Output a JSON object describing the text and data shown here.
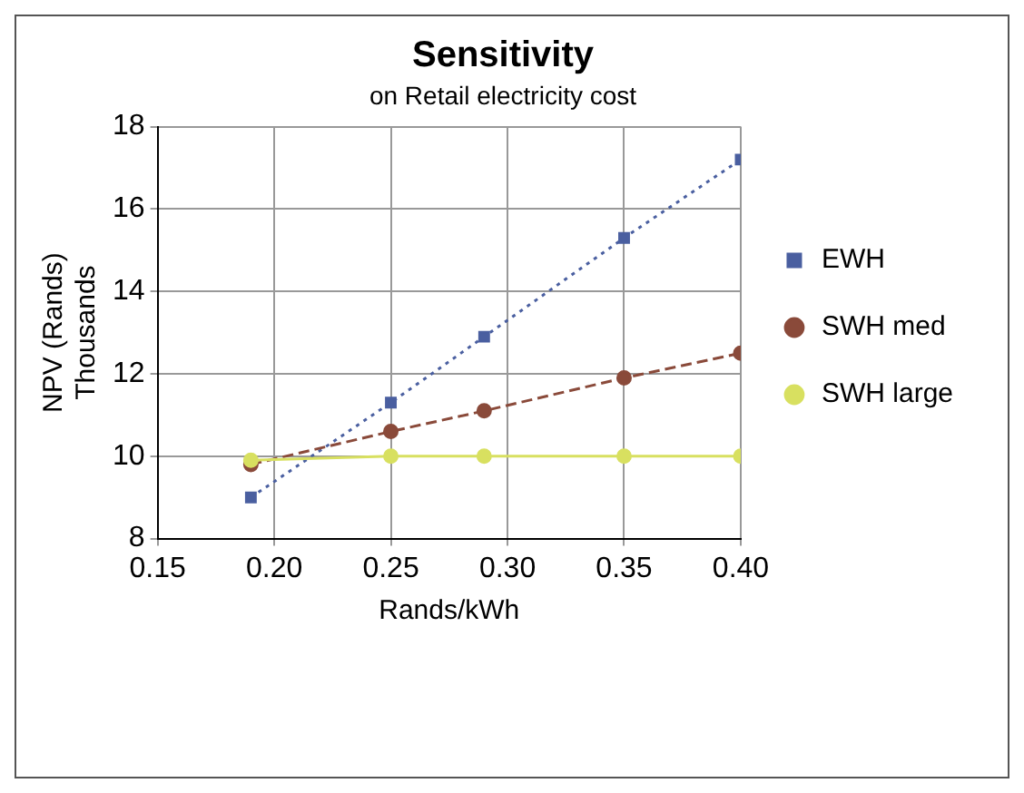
{
  "chart_data": {
    "type": "line",
    "title": "Sensitivity",
    "subtitle": "on Retail electricity cost",
    "xlabel": "Rands/kWh",
    "ylabel": "NPV (Rands)\nThousands",
    "x": [
      0.19,
      0.25,
      0.29,
      0.35,
      0.4
    ],
    "series": [
      {
        "name": "EWH",
        "color": "#4a5fa0",
        "values": [
          9.0,
          11.3,
          12.9,
          15.3,
          17.2
        ],
        "marker": "square",
        "line_style": "dotted"
      },
      {
        "name": "SWH med",
        "color": "#8a4a3a",
        "values": [
          9.8,
          10.6,
          11.1,
          11.9,
          12.5
        ],
        "marker": "circle",
        "line_style": "dashed"
      },
      {
        "name": "SWH large",
        "color": "#d8e060",
        "values": [
          9.9,
          10,
          10,
          10,
          10
        ],
        "marker": "circle",
        "line_style": "solid"
      }
    ],
    "xlim": [
      0.15,
      0.4
    ],
    "xticks": [
      {
        "value": 0.15,
        "label": "0.15"
      },
      {
        "value": 0.2,
        "label": "0.20"
      },
      {
        "value": 0.25,
        "label": "0.25"
      },
      {
        "value": 0.3,
        "label": "0.30"
      },
      {
        "value": 0.35,
        "label": "0.35"
      },
      {
        "value": 0.4,
        "label": "0.40"
      }
    ],
    "ylim": [
      8,
      18
    ],
    "yticks": [
      8,
      10,
      12,
      14,
      16,
      18
    ],
    "grid": true,
    "legend": "right"
  }
}
